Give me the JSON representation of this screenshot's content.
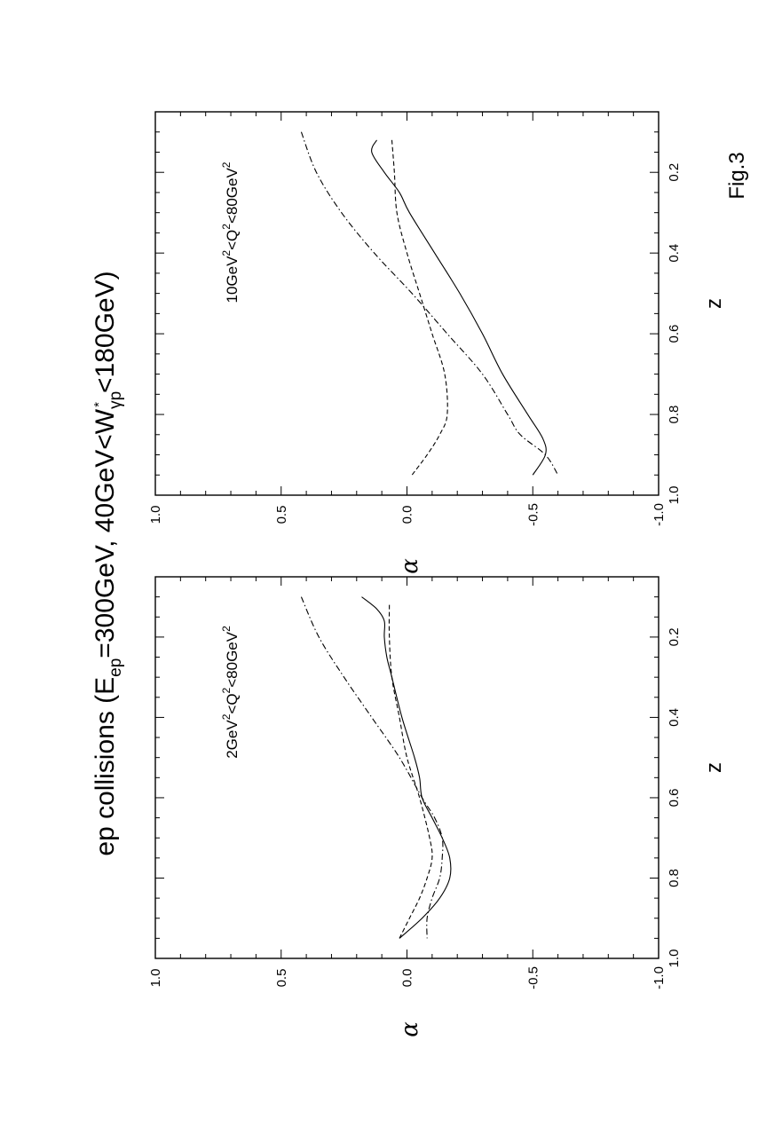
{
  "figure": {
    "title": {
      "prefix": "ep collisions (E",
      "sub1": "ep",
      "mid": "=300GeV, 40GeV<W",
      "sub2": "γp",
      "sup2": "*",
      "suffix": "<180GeV)"
    },
    "label": "Fig.3"
  },
  "chart_data": [
    {
      "type": "line",
      "panel": "left",
      "annotation": {
        "a": "2GeV",
        "sup1": "2",
        "b": "<Q",
        "sup2": "2",
        "c": "<80GeV",
        "sup3": "2"
      },
      "xlabel": "z",
      "ylabel": "α",
      "xlim": [
        0.05,
        1.0
      ],
      "ylim": [
        -1.0,
        1.0
      ],
      "xticks": [
        "0.2",
        "0.4",
        "0.6",
        "0.8",
        "1.0"
      ],
      "yticks": [
        "1.0",
        "0.5",
        "0.0",
        "-0.5",
        "-1.0"
      ],
      "series": [
        {
          "style": "solid",
          "x": [
            0.1,
            0.13,
            0.16,
            0.2,
            0.25,
            0.3,
            0.4,
            0.5,
            0.55,
            0.6,
            0.65,
            0.7,
            0.75,
            0.8,
            0.85,
            0.9,
            0.95
          ],
          "y": [
            0.18,
            0.12,
            0.09,
            0.09,
            0.08,
            0.06,
            0.02,
            -0.03,
            -0.05,
            -0.06,
            -0.1,
            -0.14,
            -0.17,
            -0.17,
            -0.13,
            -0.06,
            0.03
          ]
        },
        {
          "style": "dashed",
          "x": [
            0.12,
            0.2,
            0.3,
            0.4,
            0.5,
            0.6,
            0.7,
            0.75,
            0.8,
            0.85,
            0.9,
            0.95
          ],
          "y": [
            0.07,
            0.07,
            0.06,
            0.03,
            0.0,
            -0.05,
            -0.09,
            -0.1,
            -0.08,
            -0.05,
            -0.01,
            0.03
          ]
        },
        {
          "style": "dash-dot",
          "x": [
            0.1,
            0.2,
            0.3,
            0.4,
            0.5,
            0.6,
            0.65,
            0.7,
            0.75,
            0.8,
            0.85,
            0.9,
            0.95
          ],
          "y": [
            0.42,
            0.35,
            0.25,
            0.14,
            0.03,
            -0.06,
            -0.11,
            -0.14,
            -0.14,
            -0.13,
            -0.1,
            -0.08,
            -0.08
          ]
        }
      ]
    },
    {
      "type": "line",
      "panel": "right",
      "annotation": {
        "a": "10GeV",
        "sup1": "2",
        "b": "<Q",
        "sup2": "2",
        "c": "<80GeV",
        "sup3": "2"
      },
      "xlabel": "z",
      "ylabel": "α",
      "xlim": [
        0.05,
        1.0
      ],
      "ylim": [
        -1.0,
        1.0
      ],
      "xticks": [
        "0.2",
        "0.4",
        "0.6",
        "0.8",
        "1.0"
      ],
      "yticks": [
        "1.0",
        "0.5",
        "0.0",
        "-0.5",
        "-1.0"
      ],
      "series": [
        {
          "style": "solid",
          "x": [
            0.12,
            0.15,
            0.2,
            0.25,
            0.3,
            0.4,
            0.5,
            0.6,
            0.7,
            0.8,
            0.86,
            0.9,
            0.95
          ],
          "y": [
            0.12,
            0.14,
            0.09,
            0.03,
            -0.01,
            -0.11,
            -0.21,
            -0.3,
            -0.38,
            -0.48,
            -0.54,
            -0.55,
            -0.5
          ]
        },
        {
          "style": "dashed",
          "x": [
            0.12,
            0.2,
            0.3,
            0.4,
            0.5,
            0.6,
            0.7,
            0.8,
            0.85,
            0.9,
            0.95
          ],
          "y": [
            0.06,
            0.05,
            0.04,
            0.0,
            -0.05,
            -0.1,
            -0.15,
            -0.16,
            -0.13,
            -0.08,
            -0.02
          ]
        },
        {
          "style": "dash-dot",
          "x": [
            0.1,
            0.2,
            0.3,
            0.4,
            0.5,
            0.6,
            0.7,
            0.8,
            0.85,
            0.9,
            0.95
          ],
          "y": [
            0.42,
            0.36,
            0.26,
            0.13,
            -0.02,
            -0.16,
            -0.3,
            -0.4,
            -0.45,
            -0.55,
            -0.6
          ]
        }
      ]
    }
  ]
}
